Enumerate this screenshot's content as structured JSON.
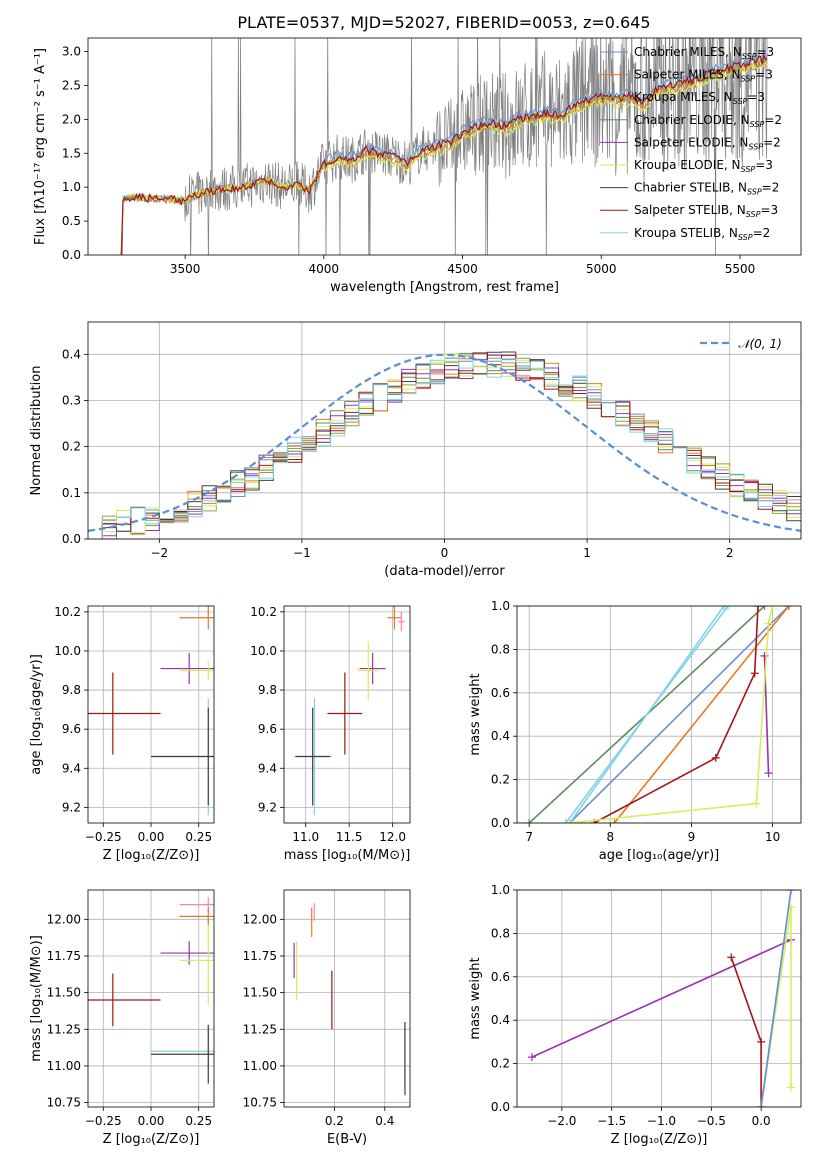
{
  "title": "PLATE=0537, MJD=52027, FIBERID=0053, z=0.645",
  "colors": {
    "chabrier_miles": "#6a8ed6",
    "salpeter_miles": "#e87722",
    "kroupa_miles": "#9aa22e",
    "chabrier_elodie": "#5a8f5a",
    "salpeter_elodie": "#9b30b0",
    "kroupa_elodie": "#d7ee5a",
    "chabrier_stelib": "#404040",
    "salpeter_stelib": "#a31515",
    "kroupa_stelib": "#80d4e6",
    "pink": "#ff7fbf",
    "data": "#808080",
    "normal_curve": "#5a8ed6"
  },
  "legend": [
    {
      "key": "chabrier_miles",
      "label": "Chabrier MILES, N",
      "sub": "SSP",
      "suffix": "=3"
    },
    {
      "key": "salpeter_miles",
      "label": "Salpeter MILES, N",
      "sub": "SSP",
      "suffix": "=3"
    },
    {
      "key": "kroupa_miles",
      "label": "Kroupa MILES, N",
      "sub": "SSP",
      "suffix": "=3"
    },
    {
      "key": "chabrier_elodie",
      "label": "Chabrier ELODIE, N",
      "sub": "SSP",
      "suffix": "=2"
    },
    {
      "key": "salpeter_elodie",
      "label": "Salpeter ELODIE, N",
      "sub": "SSP",
      "suffix": "=2"
    },
    {
      "key": "kroupa_elodie",
      "label": "Kroupa ELODIE, N",
      "sub": "SSP",
      "suffix": "=3"
    },
    {
      "key": "chabrier_stelib",
      "label": "Chabrier STELIB, N",
      "sub": "SSP",
      "suffix": "=2"
    },
    {
      "key": "salpeter_stelib",
      "label": "Salpeter STELIB, N",
      "sub": "SSP",
      "suffix": "=3"
    },
    {
      "key": "kroupa_stelib",
      "label": "Kroupa STELIB, N",
      "sub": "SSP",
      "suffix": "=2"
    }
  ],
  "chart_data": [
    {
      "id": "spectrum",
      "type": "line",
      "xlabel": "wavelength [Angstrom, rest frame]",
      "ylabel": "Flux [fλ10⁻¹⁷ erg cm⁻² s⁻¹ A⁻¹]",
      "xlim": [
        3150,
        5720
      ],
      "ylim": [
        0,
        3.2
      ],
      "xticks": [
        3500,
        4000,
        4500,
        5000,
        5500
      ],
      "yticks": [
        0.0,
        0.5,
        1.0,
        1.5,
        2.0,
        2.5,
        3.0
      ],
      "model_continuum": [
        [
          3270,
          0
        ],
        [
          3275,
          0.82
        ],
        [
          3300,
          0.85
        ],
        [
          3350,
          0.84
        ],
        [
          3400,
          0.83
        ],
        [
          3450,
          0.82
        ],
        [
          3500,
          0.8
        ],
        [
          3550,
          0.9
        ],
        [
          3600,
          0.95
        ],
        [
          3650,
          0.98
        ],
        [
          3700,
          1.0
        ],
        [
          3750,
          1.05
        ],
        [
          3800,
          1.1
        ],
        [
          3850,
          1.0
        ],
        [
          3900,
          1.05
        ],
        [
          3950,
          0.95
        ],
        [
          4000,
          1.35
        ],
        [
          4050,
          1.45
        ],
        [
          4100,
          1.4
        ],
        [
          4150,
          1.55
        ],
        [
          4200,
          1.5
        ],
        [
          4250,
          1.45
        ],
        [
          4300,
          1.35
        ],
        [
          4350,
          1.55
        ],
        [
          4400,
          1.6
        ],
        [
          4450,
          1.65
        ],
        [
          4500,
          1.8
        ],
        [
          4550,
          1.9
        ],
        [
          4600,
          1.95
        ],
        [
          4650,
          1.9
        ],
        [
          4700,
          2.0
        ],
        [
          4750,
          2.05
        ],
        [
          4800,
          2.1
        ],
        [
          4850,
          2.05
        ],
        [
          4900,
          2.2
        ],
        [
          4950,
          2.3
        ],
        [
          5000,
          2.35
        ],
        [
          5050,
          2.3
        ],
        [
          5100,
          2.35
        ],
        [
          5150,
          2.25
        ],
        [
          5200,
          2.45
        ],
        [
          5250,
          2.5
        ],
        [
          5300,
          2.55
        ],
        [
          5350,
          2.6
        ],
        [
          5400,
          2.7
        ],
        [
          5450,
          2.75
        ],
        [
          5500,
          2.8
        ],
        [
          5550,
          2.85
        ],
        [
          5600,
          2.9
        ]
      ],
      "data_range": [
        3270,
        5600
      ]
    },
    {
      "id": "residuals",
      "type": "line",
      "xlabel": "(data-model)/error",
      "ylabel": "Normed distribution",
      "xlim": [
        -2.5,
        2.5
      ],
      "ylim": [
        0,
        0.47
      ],
      "xticks": [
        -2,
        -1,
        0,
        1,
        2
      ],
      "yticks": [
        0.0,
        0.1,
        0.2,
        0.3,
        0.4
      ],
      "legend": "𝒩(0, 1)",
      "normal": {
        "mu": 0,
        "sigma": 1
      }
    },
    {
      "id": "age_vs_Z",
      "type": "scatter",
      "xlabel": "Z [log₁₀(Z/Z⊙)]",
      "ylabel": "age  [log₁₀(age/yr)]",
      "xlim": [
        -0.33,
        0.33
      ],
      "ylim": [
        9.12,
        10.23
      ],
      "xticks": [
        -0.25,
        0.0,
        0.25
      ],
      "yticks": [
        9.2,
        9.4,
        9.6,
        9.8,
        10.0,
        10.2
      ],
      "points": [
        {
          "c": "salpeter_stelib",
          "x": -0.2,
          "xerr": 0.25,
          "y": 9.68,
          "yerr": 0.21
        },
        {
          "c": "salpeter_elodie",
          "x": 0.2,
          "xerr": 0.15,
          "y": 9.91,
          "yerr": 0.08
        },
        {
          "c": "kroupa_elodie",
          "x": 0.3,
          "xerr": 0.15,
          "y": 9.9,
          "yerr": 0.05
        },
        {
          "c": "salpeter_miles",
          "x": 0.3,
          "xerr": 0.15,
          "y": 10.17,
          "yerr": 0.06
        },
        {
          "c": "kroupa_stelib",
          "x": 0.3,
          "xerr": 0.3,
          "y": 9.46,
          "yerr": 0.3
        },
        {
          "c": "chabrier_stelib",
          "x": 0.3,
          "xerr": 0.3,
          "y": 9.46,
          "yerr": 0.25
        }
      ]
    },
    {
      "id": "age_vs_mass",
      "type": "scatter",
      "xlabel": "mass [log₁₀(M/M⊙)]",
      "ylabel": "",
      "xlim": [
        10.75,
        12.2
      ],
      "ylim": [
        9.12,
        10.23
      ],
      "xticks": [
        11.0,
        11.5,
        12.0
      ],
      "yticks": [
        9.2,
        9.4,
        9.6,
        9.8,
        10.0,
        10.2
      ],
      "points": [
        {
          "c": "salpeter_stelib",
          "x": 11.45,
          "xerr": 0.2,
          "y": 9.68,
          "yerr": 0.21
        },
        {
          "c": "salpeter_elodie",
          "x": 11.77,
          "xerr": 0.15,
          "y": 9.91,
          "yerr": 0.08
        },
        {
          "c": "kroupa_elodie",
          "x": 11.72,
          "xerr": 0.12,
          "y": 9.9,
          "yerr": 0.15
        },
        {
          "c": "salpeter_miles",
          "x": 12.02,
          "xerr": 0.08,
          "y": 10.17,
          "yerr": 0.06
        },
        {
          "c": "pink",
          "x": 12.1,
          "xerr": 0.04,
          "y": 10.15,
          "yerr": 0.05
        },
        {
          "c": "kroupa_stelib",
          "x": 11.1,
          "xerr": 0.2,
          "y": 9.46,
          "yerr": 0.3
        },
        {
          "c": "chabrier_stelib",
          "x": 11.08,
          "xerr": 0.2,
          "y": 9.46,
          "yerr": 0.25
        }
      ]
    },
    {
      "id": "mw_vs_age",
      "type": "line",
      "xlabel": "age  [log₁₀(age/yr)]",
      "ylabel": "mass weight",
      "xlim": [
        6.85,
        10.35
      ],
      "ylim": [
        0,
        1.0
      ],
      "xticks": [
        7,
        8,
        9,
        10
      ],
      "yticks": [
        0.0,
        0.2,
        0.4,
        0.6,
        0.8,
        1.0
      ],
      "series": [
        {
          "c": "chabrier_elodie",
          "x": [
            7.0,
            9.9
          ],
          "y": [
            0.0,
            1.0
          ]
        },
        {
          "c": "chabrier_miles",
          "x": [
            7.5,
            10.2
          ],
          "y": [
            0.0,
            1.0
          ]
        },
        {
          "c": "salpeter_miles",
          "x": [
            8.05,
            10.2
          ],
          "y": [
            0.0,
            1.0
          ]
        },
        {
          "c": "kroupa_stelib",
          "x": [
            7.45,
            9.45
          ],
          "y": [
            0.0,
            1.0
          ]
        },
        {
          "c": "kroupa_stelib",
          "x": [
            7.5,
            9.4
          ],
          "y": [
            0.0,
            1.0
          ]
        },
        {
          "c": "salpeter_stelib",
          "x": [
            7.8,
            9.3,
            9.78,
            9.82
          ],
          "y": [
            0.0,
            0.3,
            0.69,
            1.0
          ]
        },
        {
          "c": "salpeter_elodie",
          "x": [
            9.9,
            9.95
          ],
          "y": [
            0.77,
            0.23
          ]
        },
        {
          "c": "kroupa_elodie",
          "x": [
            7.5,
            9.8,
            9.95,
            10.0
          ],
          "y": [
            0.0,
            0.09,
            0.92,
            1.0
          ]
        }
      ]
    },
    {
      "id": "mass_vs_Z",
      "type": "scatter",
      "xlabel": "Z [log₁₀(Z/Z⊙)]",
      "ylabel": "mass [log₁₀(M/M⊙)]",
      "xlim": [
        -0.33,
        0.33
      ],
      "ylim": [
        10.72,
        12.2
      ],
      "xticks": [
        -0.25,
        0.0,
        0.25
      ],
      "yticks": [
        10.75,
        11.0,
        11.25,
        11.5,
        11.75,
        12.0
      ],
      "points": [
        {
          "c": "salpeter_stelib",
          "x": -0.2,
          "xerr": 0.25,
          "y": 11.45,
          "yerr": 0.18
        },
        {
          "c": "salpeter_elodie",
          "x": 0.2,
          "xerr": 0.15,
          "y": 11.77,
          "yerr": 0.08
        },
        {
          "c": "kroupa_elodie",
          "x": 0.3,
          "xerr": 0.15,
          "y": 11.72,
          "yerr": 0.3
        },
        {
          "c": "pink",
          "x": 0.3,
          "xerr": 0.15,
          "y": 12.1,
          "yerr": 0.05
        },
        {
          "c": "salpeter_miles",
          "x": 0.3,
          "xerr": 0.15,
          "y": 12.02,
          "yerr": 0.06
        },
        {
          "c": "kroupa_stelib",
          "x": 0.3,
          "xerr": 0.3,
          "y": 11.1,
          "yerr": 0.18
        },
        {
          "c": "chabrier_stelib",
          "x": 0.3,
          "xerr": 0.3,
          "y": 11.08,
          "yerr": 0.2
        }
      ]
    },
    {
      "id": "mass_vs_ebv",
      "type": "scatter",
      "xlabel": "E(B-V)",
      "ylabel": "",
      "xlim": [
        0.0,
        0.5
      ],
      "ylim": [
        10.72,
        12.2
      ],
      "xticks": [
        0.2,
        0.4
      ],
      "yticks": [
        10.75,
        11.0,
        11.25,
        11.5,
        11.75,
        12.0
      ],
      "points": [
        {
          "c": "salpeter_stelib",
          "x": 0.19,
          "xerr": 0,
          "y": 11.45,
          "yerr": 0.2
        },
        {
          "c": "salpeter_elodie",
          "x": 0.04,
          "xerr": 0,
          "y": 11.72,
          "yerr": 0.12
        },
        {
          "c": "kroupa_elodie",
          "x": 0.05,
          "xerr": 0,
          "y": 11.65,
          "yerr": 0.2
        },
        {
          "c": "pink",
          "x": 0.12,
          "xerr": 0,
          "y": 12.05,
          "yerr": 0.06
        },
        {
          "c": "salpeter_miles",
          "x": 0.11,
          "xerr": 0,
          "y": 11.98,
          "yerr": 0.1
        },
        {
          "c": "kroupa_stelib",
          "x": 0.48,
          "xerr": 0,
          "y": 11.1,
          "yerr": 0.2
        },
        {
          "c": "chabrier_stelib",
          "x": 0.48,
          "xerr": 0,
          "y": 11.05,
          "yerr": 0.25
        }
      ]
    },
    {
      "id": "mw_vs_Z",
      "type": "line",
      "xlabel": "Z [log₁₀(Z/Z⊙)]",
      "ylabel": "mass weight",
      "xlim": [
        -2.45,
        0.4
      ],
      "ylim": [
        0,
        1.0
      ],
      "xticks": [
        -2.0,
        -1.5,
        -1.0,
        -0.5,
        0.0
      ],
      "yticks": [
        0.0,
        0.2,
        0.4,
        0.6,
        0.8,
        1.0
      ],
      "series": [
        {
          "c": "salpeter_elodie",
          "x": [
            -2.3,
            0.3
          ],
          "y": [
            0.23,
            0.77
          ]
        },
        {
          "c": "salpeter_stelib",
          "x": [
            -0.3,
            0.0,
            0.0
          ],
          "y": [
            0.69,
            0.3,
            0.0
          ]
        },
        {
          "c": "kroupa_elodie",
          "x": [
            0.0,
            0.3,
            0.3
          ],
          "y": [
            0.0,
            0.92,
            0.09
          ]
        },
        {
          "c": "kroupa_stelib",
          "x": [
            0.0,
            0.3
          ],
          "y": [
            0.0,
            1.0
          ]
        },
        {
          "c": "chabrier_miles",
          "x": [
            0.0,
            0.3
          ],
          "y": [
            0.0,
            1.0
          ]
        }
      ]
    }
  ]
}
